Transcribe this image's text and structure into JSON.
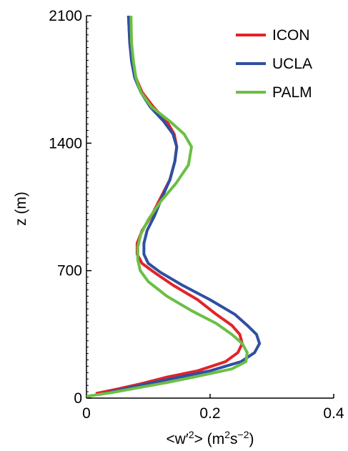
{
  "chart_data": {
    "type": "line",
    "xlabel": {
      "main": "<w′",
      "exp1": "2",
      "mid": "> (m",
      "exp2": "2",
      "mid2": "s",
      "exp3": "−2",
      "end": ")"
    },
    "ylabel": "z (m)",
    "xlim": [
      0,
      0.4
    ],
    "ylim": [
      0,
      2100
    ],
    "xticks": [
      {
        "value": 0,
        "label": "0"
      },
      {
        "value": 0.2,
        "label": "0.2"
      },
      {
        "value": 0.4,
        "label": "0.4"
      }
    ],
    "yticks": [
      {
        "value": 0,
        "label": "0"
      },
      {
        "value": 700,
        "label": "700"
      },
      {
        "value": 1400,
        "label": "1400"
      },
      {
        "value": 2100,
        "label": "2100"
      }
    ],
    "grid": false,
    "legend_position": "top-right",
    "series": [
      {
        "name": "ICON",
        "color": "#e32229",
        "x": [
          0.015,
          0.05,
          0.09,
          0.13,
          0.18,
          0.225,
          0.245,
          0.252,
          0.248,
          0.235,
          0.21,
          0.18,
          0.14,
          0.11,
          0.09,
          0.082,
          0.082,
          0.09,
          0.105,
          0.12,
          0.135,
          0.143,
          0.146,
          0.142,
          0.13,
          0.108,
          0.09,
          0.08,
          0.074,
          0.07,
          0.068
        ],
        "y": [
          25,
          50,
          80,
          115,
          150,
          200,
          250,
          300,
          350,
          400,
          460,
          540,
          620,
          690,
          740,
          790,
          850,
          920,
          1000,
          1100,
          1200,
          1300,
          1380,
          1450,
          1520,
          1600,
          1680,
          1760,
          1850,
          1950,
          2100
        ]
      },
      {
        "name": "UCLA",
        "color": "#2f4fa1",
        "x": [
          0.028,
          0.06,
          0.1,
          0.15,
          0.2,
          0.25,
          0.272,
          0.28,
          0.275,
          0.26,
          0.24,
          0.2,
          0.155,
          0.12,
          0.1,
          0.093,
          0.093,
          0.098,
          0.11,
          0.122,
          0.135,
          0.143,
          0.146,
          0.14,
          0.125,
          0.103,
          0.088,
          0.078,
          0.073,
          0.07,
          0.068
        ],
        "y": [
          25,
          50,
          80,
          115,
          150,
          200,
          250,
          300,
          350,
          400,
          460,
          540,
          620,
          690,
          740,
          790,
          850,
          920,
          1000,
          1100,
          1200,
          1300,
          1380,
          1450,
          1520,
          1600,
          1680,
          1760,
          1850,
          1950,
          2100
        ]
      },
      {
        "name": "PALM",
        "color": "#6bbf45",
        "x": [
          0.0,
          0.04,
          0.08,
          0.13,
          0.18,
          0.235,
          0.258,
          0.26,
          0.252,
          0.235,
          0.21,
          0.17,
          0.13,
          0.1,
          0.087,
          0.083,
          0.083,
          0.088,
          0.1,
          0.12,
          0.145,
          0.165,
          0.17,
          0.158,
          0.135,
          0.105,
          0.088,
          0.08,
          0.076,
          0.073,
          0.072
        ],
        "y": [
          10,
          30,
          55,
          85,
          120,
          160,
          200,
          250,
          300,
          350,
          410,
          480,
          560,
          640,
          700,
          760,
          830,
          900,
          980,
          1080,
          1180,
          1280,
          1380,
          1450,
          1520,
          1600,
          1680,
          1760,
          1850,
          1950,
          2100
        ]
      }
    ]
  }
}
